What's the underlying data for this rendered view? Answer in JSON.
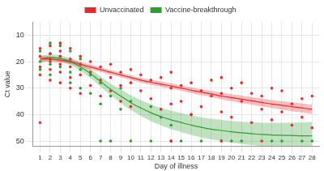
{
  "chart_data": {
    "type": "scatter",
    "x_label": "Day of illness",
    "y_label": "Ct value",
    "xlim": [
      0.3,
      28.7
    ],
    "xticks": [
      1,
      2,
      3,
      4,
      5,
      6,
      7,
      8,
      9,
      10,
      11,
      12,
      13,
      14,
      15,
      16,
      17,
      18,
      19,
      20,
      21,
      22,
      23,
      24,
      25,
      26,
      27,
      28
    ],
    "ylim": [
      52,
      5
    ],
    "yticks": [
      10,
      20,
      30,
      40,
      50
    ],
    "grid": true,
    "legend": "top",
    "series": [
      {
        "name": "Unvaccinated",
        "color": "#e8292b",
        "marker": "circle",
        "x": [
          1,
          1,
          1,
          1,
          1,
          2,
          2,
          2,
          2,
          2,
          2,
          3,
          3,
          3,
          3,
          3,
          3,
          4,
          4,
          4,
          4,
          4,
          5,
          5,
          5,
          5,
          6,
          6,
          6,
          7,
          7,
          7,
          8,
          8,
          8,
          9,
          9,
          9,
          10,
          10,
          10,
          11,
          11,
          12,
          12,
          13,
          13,
          14,
          14,
          14,
          14,
          15,
          15,
          16,
          16,
          17,
          17,
          18,
          18,
          19,
          19,
          19,
          19,
          20,
          20,
          21,
          21,
          22,
          22,
          23,
          23,
          23,
          24,
          24,
          25,
          25,
          26,
          26,
          27,
          27,
          28,
          28
        ],
        "values": [
          18,
          22,
          15,
          25,
          43,
          14,
          17,
          20,
          23,
          27,
          19,
          13,
          16,
          21,
          24,
          18,
          28,
          15,
          19,
          22,
          26,
          30,
          18,
          21,
          25,
          32,
          20,
          24,
          29,
          22,
          27,
          33,
          21,
          26,
          31,
          24,
          29,
          35,
          23,
          28,
          37,
          25,
          31,
          27,
          34,
          26,
          38,
          24,
          30,
          36,
          50,
          29,
          35,
          28,
          40,
          31,
          37,
          27,
          33,
          26,
          32,
          39,
          50,
          30,
          41,
          28,
          35,
          32,
          43,
          33,
          38,
          50,
          30,
          42,
          31,
          39,
          36,
          44,
          34,
          41,
          33,
          45
        ],
        "fit": {
          "x": [
            1,
            2,
            3,
            4,
            5,
            6,
            7,
            8,
            9,
            10,
            11,
            12,
            13,
            14,
            15,
            16,
            17,
            18,
            19,
            20,
            21,
            22,
            23,
            24,
            25,
            26,
            27,
            28
          ],
          "values": [
            19,
            19,
            19.5,
            20,
            21,
            22,
            23,
            24,
            25,
            26,
            27,
            27.8,
            28.5,
            29.2,
            30,
            30.8,
            31.5,
            32.2,
            33,
            33.6,
            34.2,
            34.8,
            35.4,
            36,
            36.5,
            37,
            37.5,
            38
          ],
          "lower": [
            20.2,
            20,
            20.4,
            20.9,
            21.9,
            22.9,
            23.9,
            24.9,
            25.9,
            26.9,
            27.9,
            28.8,
            29.5,
            30.2,
            31,
            31.9,
            32.6,
            33.4,
            34.2,
            34.9,
            35.6,
            36.2,
            36.9,
            37.5,
            38.1,
            38.7,
            39.2,
            39.8
          ],
          "upper": [
            17.8,
            18,
            18.6,
            19.1,
            20.1,
            21.1,
            22.1,
            23.1,
            24.1,
            25.1,
            26.1,
            26.8,
            27.5,
            28.2,
            29,
            29.7,
            30.4,
            31,
            31.8,
            32.3,
            32.8,
            33.4,
            33.9,
            34.5,
            34.9,
            35.3,
            35.8,
            36.2
          ]
        }
      },
      {
        "name": "Vaccine-breakthrough",
        "color": "#2e9e2e",
        "marker": "circle",
        "x": [
          1,
          1,
          1,
          2,
          2,
          2,
          2,
          3,
          3,
          3,
          4,
          4,
          4,
          4,
          5,
          5,
          5,
          6,
          6,
          7,
          7,
          7,
          8,
          8,
          9,
          9,
          10,
          10,
          12,
          12,
          13,
          14,
          14,
          15,
          16,
          17,
          19,
          20,
          21,
          24,
          25,
          27,
          28
        ],
        "values": [
          16,
          20,
          23,
          13,
          17,
          21,
          25,
          14,
          18,
          22,
          16,
          20,
          24,
          28,
          19,
          23,
          30,
          25,
          32,
          28,
          36,
          50,
          33,
          50,
          30,
          38,
          35,
          50,
          37,
          50,
          41,
          44,
          50,
          50,
          40,
          50,
          50,
          50,
          50,
          50,
          50,
          50,
          50
        ],
        "fit": {
          "x": [
            1,
            2,
            3,
            4,
            5,
            6,
            7,
            8,
            9,
            10,
            11,
            12,
            13,
            14,
            15,
            16,
            17,
            18,
            19,
            20,
            21,
            22,
            23,
            24,
            25,
            26,
            27,
            28
          ],
          "values": [
            19,
            18.5,
            18.8,
            20,
            22,
            24.5,
            27.5,
            30.5,
            33,
            35.5,
            37.5,
            39.3,
            40.8,
            42,
            43,
            44,
            44.8,
            45.5,
            46,
            46.5,
            46.9,
            47.2,
            47.5,
            47.7,
            47.8,
            47.9,
            48,
            48
          ],
          "lower": [
            20.3,
            19.7,
            20,
            21.3,
            23.5,
            26.2,
            29.4,
            32.7,
            35.5,
            38.3,
            40.5,
            42.5,
            44.1,
            45.5,
            46.6,
            47.7,
            48.6,
            49.4,
            50,
            50.6,
            51.1,
            51.5,
            51.9,
            52.3,
            52.5,
            52.8,
            53,
            53.2
          ],
          "upper": [
            17.7,
            17.3,
            17.6,
            18.7,
            20.5,
            22.8,
            25.6,
            28.3,
            30.5,
            32.7,
            34.5,
            36.1,
            37.5,
            38.5,
            39.4,
            40.3,
            41,
            41.6,
            42,
            42.4,
            42.7,
            42.9,
            43.1,
            43.1,
            43.1,
            43,
            43,
            42.8
          ]
        }
      }
    ]
  }
}
